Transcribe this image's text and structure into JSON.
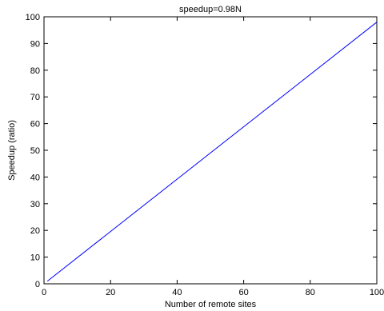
{
  "chart_data": {
    "type": "line",
    "title": "speedup=0.98N",
    "xlabel": "Number of remote sites",
    "ylabel": "Speedup (ratio)",
    "xlim": [
      0,
      100
    ],
    "ylim": [
      0,
      100
    ],
    "xticks": [
      0,
      20,
      40,
      60,
      80,
      100
    ],
    "yticks": [
      0,
      10,
      20,
      30,
      40,
      50,
      60,
      70,
      80,
      90,
      100
    ],
    "grid": false,
    "legend": "none",
    "colors": {
      "series": "#0000ff",
      "axes": "#000000"
    },
    "series": [
      {
        "x": [
          1,
          100
        ],
        "y": [
          0.98,
          98
        ]
      }
    ]
  }
}
